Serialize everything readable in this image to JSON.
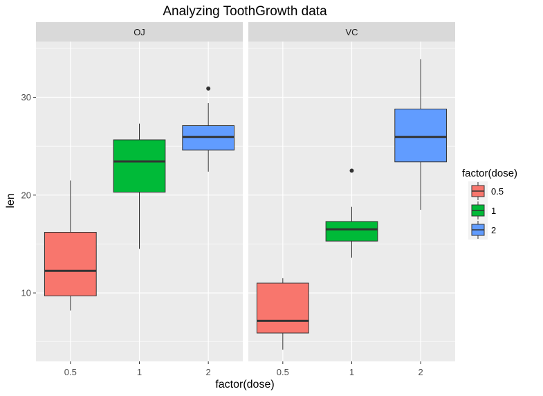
{
  "chart_data": {
    "type": "box",
    "title": "Analyzing ToothGrowth data",
    "xlabel": "factor(dose)",
    "ylabel": "len",
    "categories": [
      "0.5",
      "1",
      "2"
    ],
    "ylim": [
      3.0,
      35.7
    ],
    "yticks": [
      10,
      20,
      30
    ],
    "grid": true,
    "legend": {
      "title": "factor(dose)",
      "position": "right",
      "entries": [
        {
          "label": "0.5",
          "color": "#F8766D"
        },
        {
          "label": "1",
          "color": "#00BA38"
        },
        {
          "label": "2",
          "color": "#619CFF"
        }
      ]
    },
    "panels": [
      {
        "name": "OJ",
        "boxes": [
          {
            "category": "0.5",
            "min": 8.2,
            "q1": 9.7,
            "median": 12.25,
            "q3": 16.2,
            "max": 21.5,
            "outliers": []
          },
          {
            "category": "1",
            "min": 14.5,
            "q1": 20.3,
            "median": 23.45,
            "q3": 25.65,
            "max": 27.3,
            "outliers": []
          },
          {
            "category": "2",
            "min": 22.4,
            "q1": 24.6,
            "median": 25.95,
            "q3": 27.1,
            "max": 29.4,
            "outliers": [
              30.9
            ]
          }
        ]
      },
      {
        "name": "VC",
        "boxes": [
          {
            "category": "0.5",
            "min": 4.2,
            "q1": 5.9,
            "median": 7.15,
            "q3": 11.0,
            "max": 11.5,
            "outliers": []
          },
          {
            "category": "1",
            "min": 13.6,
            "q1": 15.3,
            "median": 16.5,
            "q3": 17.3,
            "max": 18.8,
            "outliers": [
              22.5
            ]
          },
          {
            "category": "2",
            "min": 18.5,
            "q1": 23.4,
            "median": 25.95,
            "q3": 28.8,
            "max": 33.9,
            "outliers": []
          }
        ]
      }
    ],
    "colors": {
      "panel_bg": "#EBEBEB",
      "grid": "#FFFFFF",
      "strip_bg": "#D9D9D9"
    }
  }
}
